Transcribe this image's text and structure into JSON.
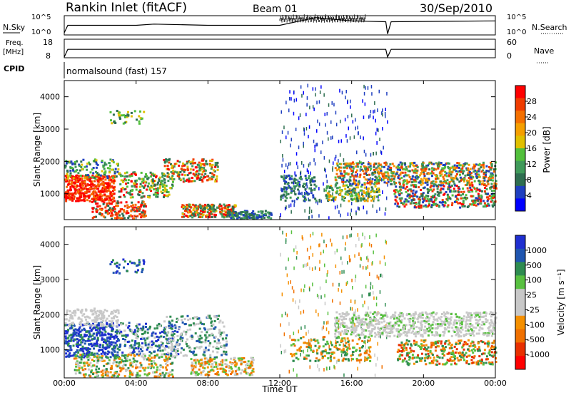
{
  "header": {
    "station": "Rankin Inlet (fitACF)",
    "beam": "Beam 01",
    "date": "30/Sep/2010"
  },
  "side_labels": {
    "nsky": "N.Sky",
    "nsearch": "N.Search",
    "freq_line1": "Freq.",
    "freq_line2": "[MHz]",
    "nave": "Nave",
    "cpid": "CPID"
  },
  "cpid_text": "normalsound (fast) 157",
  "time_axis": {
    "label": "Time UT",
    "ticks": [
      "00:00",
      "04:00",
      "08:00",
      "12:00",
      "16:00",
      "20:00",
      "00:00"
    ]
  },
  "colors": {
    "power": [
      "#0000ff",
      "#1f3fc0",
      "#2e6e50",
      "#3f9a5a",
      "#52c03c",
      "#e0c000",
      "#f59f00",
      "#f57000",
      "#f03c00",
      "#ff0000"
    ],
    "velocity": [
      "#ff0000",
      "#e83000",
      "#f07000",
      "#f59000",
      "#c8c8c8",
      "#c8c8c8",
      "#58c040",
      "#2e8c50",
      "#1f56b0",
      "#1f2fd0"
    ]
  },
  "chart_data": [
    {
      "type": "line",
      "name": "noise_panel",
      "left_label": "N.Sky",
      "right_label": "N.Search",
      "left_ticks": [
        "10^5",
        "10^0"
      ],
      "right_ticks": [
        "10^5",
        "10^0"
      ],
      "x_hours": [
        0,
        0.2,
        4,
        5,
        8,
        12,
        14,
        16,
        17.9,
        18,
        18.2,
        24
      ],
      "log_values": [
        0.5,
        3,
        3,
        3.4,
        3,
        3,
        5.6,
        4.5,
        4.2,
        0.1,
        4.2,
        4.5
      ]
    },
    {
      "type": "line",
      "name": "frequency_panel",
      "left_label": "Freq. [MHz]",
      "right_label": "Nave",
      "left_ticks": [
        "18",
        "8"
      ],
      "right_ticks": [
        "60",
        "0"
      ],
      "x_hours": [
        0,
        0.2,
        17.9,
        18,
        18.2,
        24
      ],
      "values": [
        8,
        12.5,
        12.5,
        8,
        12.5,
        12.5
      ]
    },
    {
      "type": "heatmap",
      "name": "power_panel",
      "xlabel": "",
      "ylabel": "Slant Range [km]",
      "xlim": [
        0,
        24
      ],
      "ylim": [
        200,
        4500
      ],
      "y_ticks": [
        "1000",
        "2000",
        "3000",
        "4000"
      ],
      "colorbar_label": "Power [dB]",
      "colorbar_ticks": [
        "4",
        "8",
        "12",
        "16",
        "20",
        "24",
        "28"
      ]
    },
    {
      "type": "heatmap",
      "name": "velocity_panel",
      "xlabel": "Time UT",
      "ylabel": "Slant Range [km]",
      "xlim": [
        0,
        24
      ],
      "ylim": [
        200,
        4500
      ],
      "y_ticks": [
        "1000",
        "2000",
        "3000",
        "4000"
      ],
      "colorbar_label": "Velocity [m s⁻¹]",
      "colorbar_ticks": [
        "1000",
        "500",
        "100",
        "25",
        "-25",
        "-100",
        "-500",
        "-1000"
      ]
    }
  ]
}
